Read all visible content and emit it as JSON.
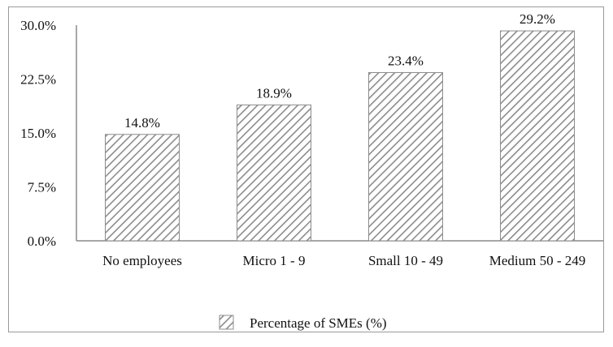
{
  "chart_data": {
    "type": "bar",
    "title": "",
    "xlabel": "",
    "ylabel": "",
    "categories": [
      "No employees",
      "Micro 1 - 9",
      "Small 10 - 49",
      "Medium 50 - 249"
    ],
    "series": [
      {
        "name": "Percentage of SMEs (%)",
        "values": [
          14.8,
          18.9,
          23.4,
          29.2
        ],
        "data_labels": [
          "14.8%",
          "18.9%",
          "23.4%",
          "29.2%"
        ],
        "fill": "hatched",
        "color": "#8c8c8c"
      }
    ],
    "ylim": [
      0,
      30
    ],
    "yticks": [
      0,
      7.5,
      15,
      22.5,
      30
    ],
    "ytick_labels": [
      "0.0%",
      "7.5%",
      "15.0%",
      "22.5%",
      "30.0%"
    ],
    "grid": false,
    "legend": "bottom-center"
  }
}
